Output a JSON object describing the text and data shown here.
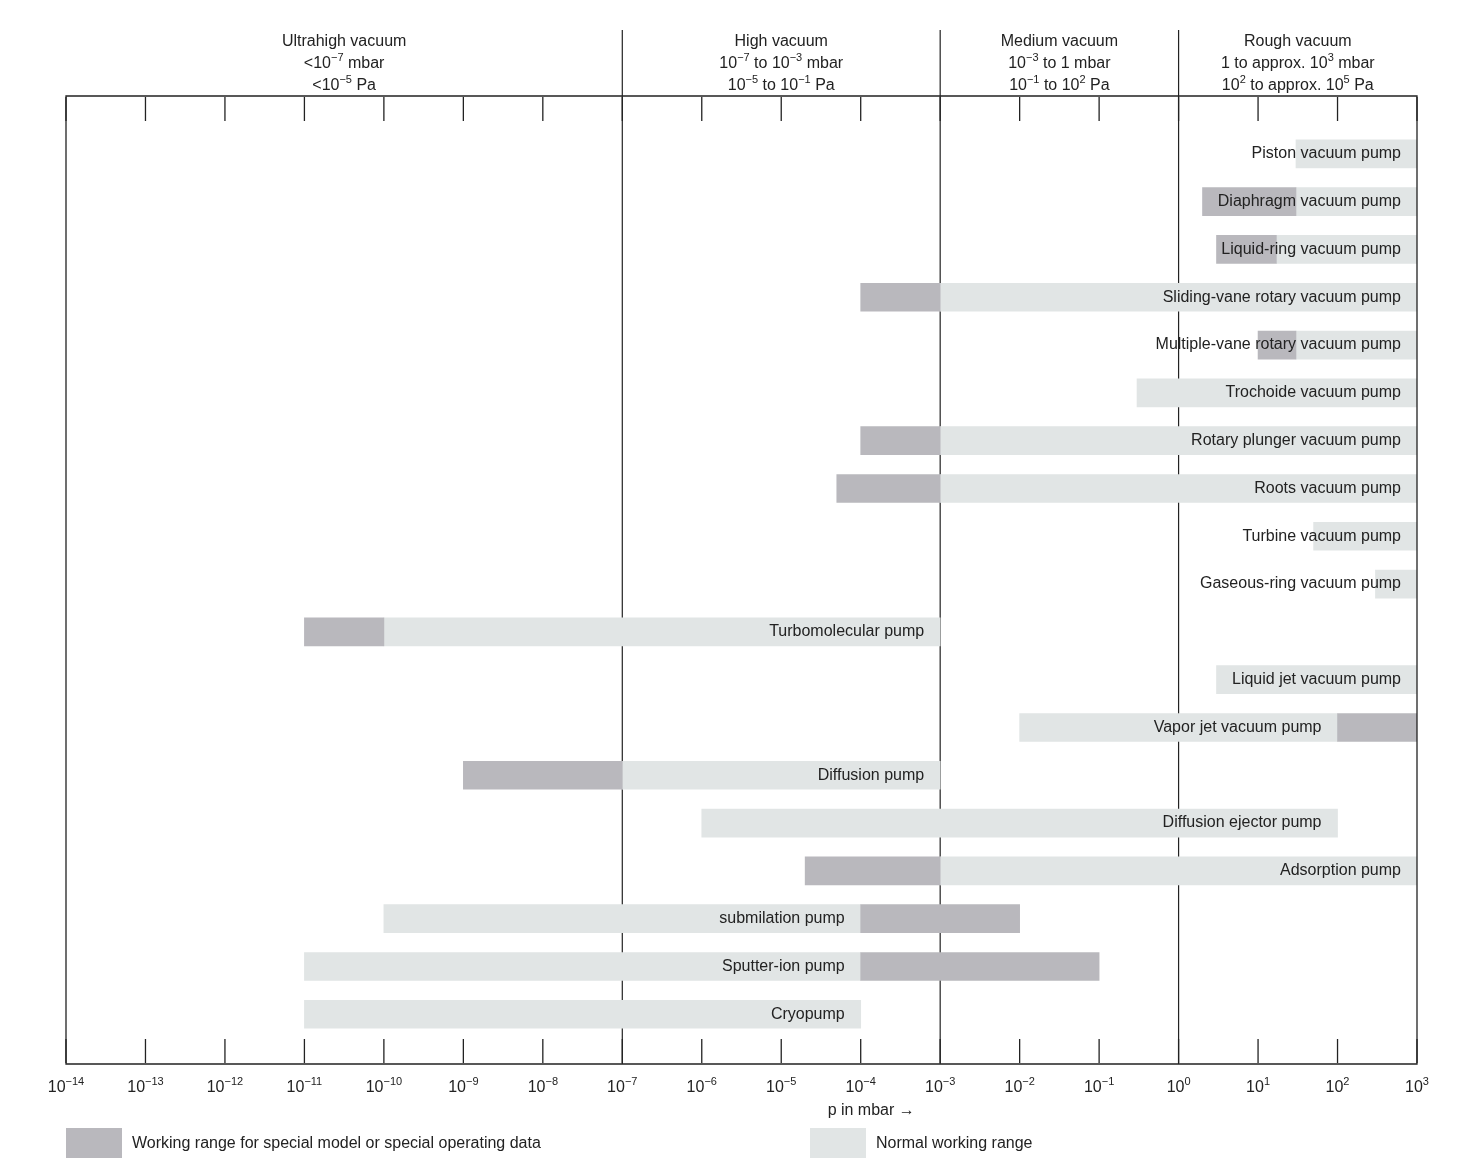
{
  "chart_data": {
    "type": "bar",
    "orientation": "horizontal",
    "log": "x",
    "grid": false,
    "legend": "bottom",
    "xlabel": "p in mbar →",
    "categories": [
      "Piston vacuum pump",
      "Diaphragm vacuum pump",
      "Liquid-ring vacuum pump",
      "Sliding-vane rotary vacuum pump",
      "Multiple-vane rotary vacuum pump",
      "Trochoide vacuum pump",
      "Rotary plunger vacuum pump",
      "Roots vacuum pump",
      "Turbine vacuum pump",
      "Gaseous-ring vacuum pump",
      "Turbomolecular pump",
      "Liquid jet vacuum pump",
      "Vapor jet vacuum pump",
      "Diffusion pump",
      "Diffusion ejector pump",
      "Adsorption pump",
      "submilation pump",
      "Sputter-ion pump",
      "Cryopump"
    ],
    "series": [
      {
        "name": "Working range for special model or special operating data",
        "color": "#b9b8bd",
        "base": [
          null,
          2,
          3,
          0.0001,
          10,
          null,
          0.0001,
          5e-05,
          null,
          null,
          1e-11,
          null,
          100,
          1e-09,
          null,
          2e-05,
          0.0001,
          0.0001,
          null
        ],
        "values": [
          null,
          28,
          14,
          0.0009,
          20,
          null,
          0.0009,
          0.00095,
          null,
          null,
          9e-11,
          null,
          900,
          9.9e-08,
          null,
          0.00098,
          0.0099,
          0.0999,
          null
        ]
      },
      {
        "name": "Normal working range",
        "color": "#e1e5e5",
        "base": [
          30,
          30,
          17,
          0.001,
          30,
          0.3,
          0.001,
          0.001,
          50,
          300,
          1e-10,
          3,
          0.01,
          1e-07,
          1e-06,
          0.001,
          1e-10,
          1e-11,
          1e-11
        ],
        "values": [
          970,
          970,
          983,
          999.999,
          970,
          999.7,
          999.999,
          999.999,
          950,
          700,
          0.0009999999,
          997,
          99.99,
          0.0009999,
          99.999999,
          999.999,
          9.99999e-05,
          9.999999e-05,
          9.999999e-05
        ]
      }
    ],
    "xlim": [
      1e-14,
      1000
    ],
    "xticks": [
      {
        "value": 1e-14,
        "label": "10$^{−14}$"
      },
      {
        "value": 1e-13,
        "label": "10$^{−13}$"
      },
      {
        "value": 1e-12,
        "label": "10$^{−12}$"
      },
      {
        "value": 1e-11,
        "label": "10$^{−11}$"
      },
      {
        "value": 1e-10,
        "label": "10$^{−10}$"
      },
      {
        "value": 1e-09,
        "label": "10$^{−9}$"
      },
      {
        "value": 1e-08,
        "label": "10$^{−8}$"
      },
      {
        "value": 1e-07,
        "label": "10$^{−7}$"
      },
      {
        "value": 1e-06,
        "label": "10$^{−6}$"
      },
      {
        "value": 1e-05,
        "label": "10$^{−5}$"
      },
      {
        "value": 0.0001,
        "label": "10$^{−4}$"
      },
      {
        "value": 0.001,
        "label": "10$^{−3}$"
      },
      {
        "value": 0.01,
        "label": "10$^{−2}$"
      },
      {
        "value": 0.1,
        "label": "10$^{−1}$"
      },
      {
        "value": 1,
        "label": "10$^{0}$"
      },
      {
        "value": 10,
        "label": "10$^{1}$"
      },
      {
        "value": 100,
        "label": "10$^{2}$"
      },
      {
        "value": 1000,
        "label": "10$^{3}$"
      }
    ],
    "ref_lines": [
      {
        "axis": "x",
        "value": 1e-07
      },
      {
        "axis": "x",
        "value": 0.001
      },
      {
        "axis": "x",
        "value": 1
      }
    ],
    "annotations": [
      "Ultrahigh vacuum\n<10$^{−7}$ mbar\n<10$^{−5}$ Pa",
      "High vacuum\n10$^{−7}$ to 10$^{−3}$ mbar\n10$^{−5}$ to 10$^{−1}$ Pa",
      "Medium vacuum\n10$^{−3}$ to 1 mbar\n10$^{−1}$ to 10$^{2}$ Pa",
      "Rough vacuum\n1 to approx. 10$^{3}$ mbar\n10$^{2}$ to approx. 10$^{5}$ Pa"
    ]
  }
}
